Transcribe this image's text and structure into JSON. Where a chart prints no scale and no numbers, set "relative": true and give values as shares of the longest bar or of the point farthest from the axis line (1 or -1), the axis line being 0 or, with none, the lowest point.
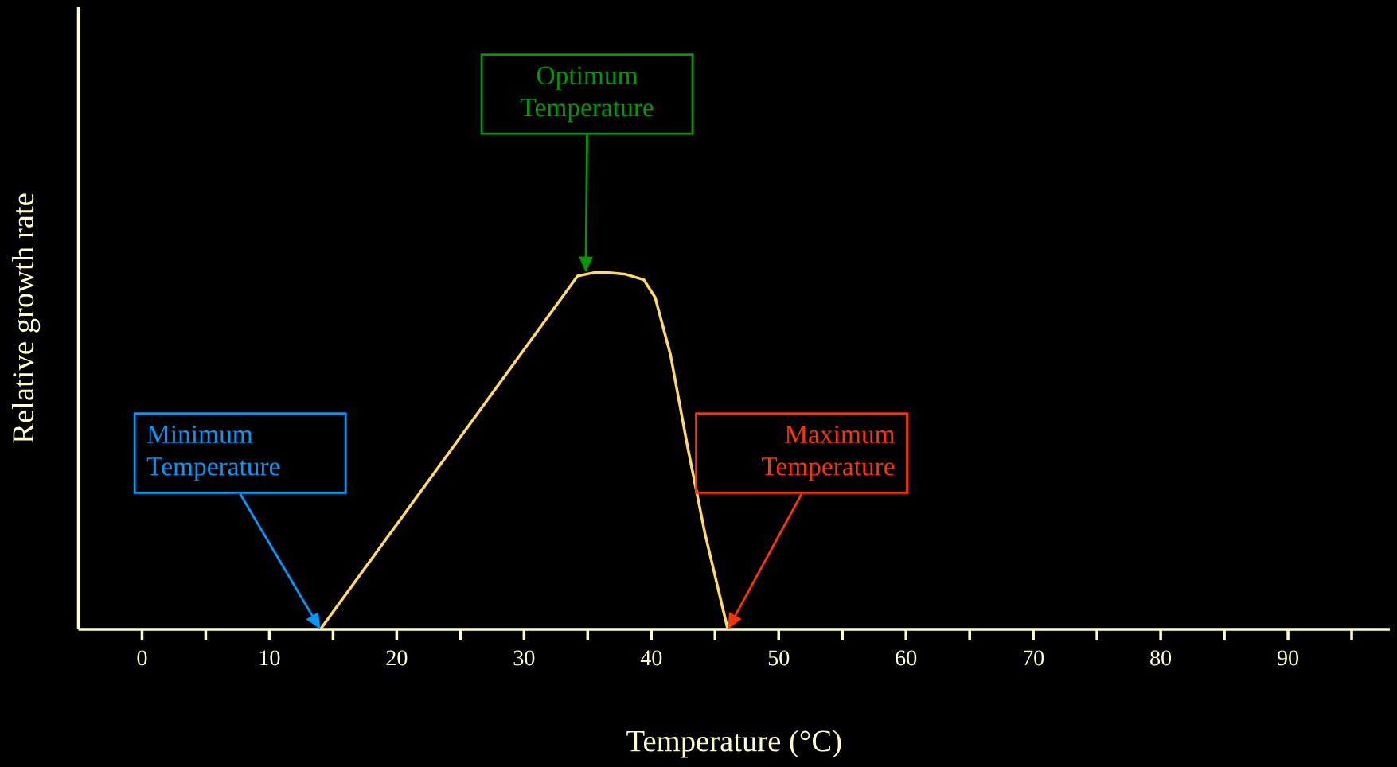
{
  "chart_data": {
    "type": "line",
    "relative": true,
    "xlabel": "Temperature (°C)",
    "ylabel": "Relative growth rate",
    "xlim": [
      -5,
      98
    ],
    "xticks": [
      0,
      {
        "value": 5,
        "label": null
      },
      10,
      {
        "value": 15,
        "label": null
      },
      20,
      {
        "value": 25,
        "label": null
      },
      30,
      {
        "value": 35,
        "label": null
      },
      40,
      {
        "value": 45,
        "label": null
      },
      50,
      {
        "value": 55,
        "label": null
      },
      60,
      {
        "value": 65,
        "label": null
      },
      70,
      {
        "value": 75,
        "label": null
      },
      80,
      {
        "value": 85,
        "label": null
      },
      90,
      {
        "value": 95,
        "label": null
      }
    ],
    "x": [
      14,
      34.2,
      35.5,
      36.5,
      38,
      39.4,
      40.3,
      41.5,
      42.8,
      44.2,
      46
    ],
    "series": [
      {
        "color": "#ffd966",
        "values": [
          0,
          0.99,
          1,
          1,
          0.995,
          0.98,
          0.93,
          0.77,
          0.52,
          0.27,
          0
        ]
      }
    ],
    "annotations": [
      "Minimum Temperature",
      "Optimum Temperature",
      "Maximum Temperature"
    ],
    "grid": false,
    "marker": "none",
    "line_style": "solid"
  }
}
